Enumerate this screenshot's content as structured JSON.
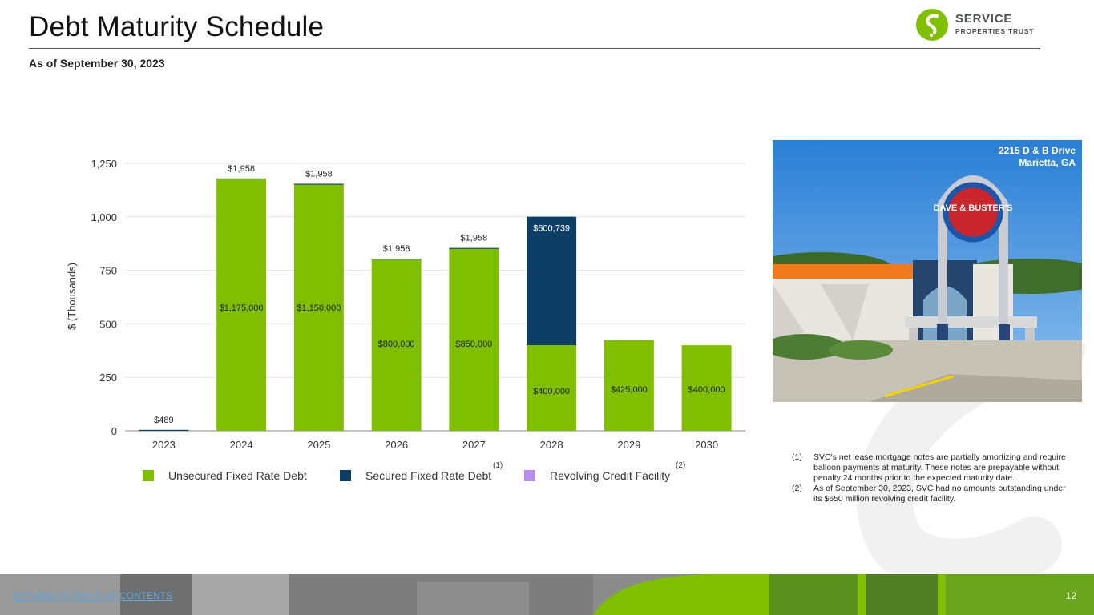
{
  "header": {
    "title": "Debt Maturity Schedule",
    "subtitle": "As of September 30, 2023"
  },
  "logo": {
    "name": "SERVICE",
    "subname": "PROPERTIES TRUST"
  },
  "colors": {
    "unsecured": "#7fbf00",
    "secured": "#0d3f66",
    "revolving": "#b78ef0",
    "grid": "#e3e3e3",
    "axis": "#888888",
    "footer_link": "#5fa8e0"
  },
  "chart_data": {
    "type": "bar",
    "stacked": true,
    "categories": [
      "2023",
      "2024",
      "2025",
      "2026",
      "2027",
      "2028",
      "2029",
      "2030"
    ],
    "ylabel": "$ (Thousands)",
    "ylim": [
      0,
      1250
    ],
    "yticks": [
      0,
      250,
      500,
      750,
      1000,
      1250
    ],
    "ytick_labels": [
      "0",
      "250",
      "500",
      "750",
      "1,000",
      "1,250"
    ],
    "grid": true,
    "legend_position": "bottom",
    "series": [
      {
        "name": "Unsecured Fixed Rate Debt",
        "color": "#7fbf00",
        "values": [
          0,
          1175,
          1150,
          800,
          850,
          400,
          425,
          400
        ],
        "labels": [
          "",
          "$1,175,000",
          "$1,150,000",
          "$800,000",
          "$850,000",
          "$400,000",
          "$425,000",
          "$400,000"
        ]
      },
      {
        "name": "Secured Fixed Rate Debt",
        "color": "#0d3f66",
        "values": [
          0.489,
          1.958,
          1.958,
          1.958,
          1.958,
          600.739,
          0,
          0
        ],
        "labels": [
          "$489",
          "$1,958",
          "$1,958",
          "$1,958",
          "$1,958",
          "$600,739",
          "",
          ""
        ],
        "note": "(1)"
      },
      {
        "name": "Revolving Credit Facility",
        "color": "#b78ef0",
        "values": [
          0,
          0,
          0,
          0,
          0,
          0,
          0,
          0
        ],
        "note": "(2)"
      }
    ]
  },
  "photo": {
    "caption_line1": "2215 D & B Drive",
    "caption_line2": "Marietta, GA",
    "sign_text": "DAVE & BUSTER'S"
  },
  "notes": [
    {
      "num": "(1)",
      "text": "SVC's net lease mortgage notes are partially amortizing and require balloon payments at maturity. These notes are prepayable without penalty 24 months prior to the expected maturity date."
    },
    {
      "num": "(2)",
      "text": "As of September 30, 2023, SVC had no amounts outstanding under its $650 million revolving credit facility."
    }
  ],
  "footer": {
    "link_label": "RETURN TO TABLE OF CONTENTS",
    "page_number": "12"
  }
}
